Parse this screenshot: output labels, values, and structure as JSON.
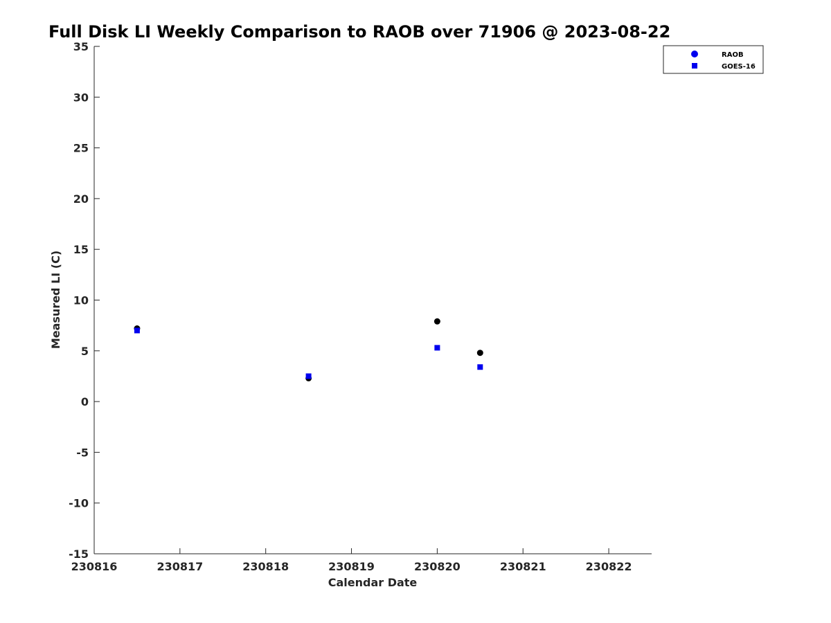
{
  "chart_data": {
    "type": "scatter",
    "title": "Full Disk LI Weekly Comparison to RAOB over 71906 @ 2023-08-22",
    "xlabel": "Calendar Date",
    "ylabel": "Measured LI (C)",
    "xlim": [
      "2023-08-16",
      "2023-08-22 12:00"
    ],
    "ylim": [
      -15,
      35
    ],
    "x_ticks": [
      "2023-08-16",
      "2023-08-17",
      "2023-08-18",
      "2023-08-19",
      "2023-08-20",
      "2023-08-21",
      "2023-08-22"
    ],
    "x_tick_labels": [
      "230816",
      "230817",
      "230818",
      "230819",
      "230820",
      "230821",
      "230822"
    ],
    "y_ticks": [
      35,
      30,
      25,
      20,
      15,
      10,
      5,
      0,
      -5,
      -10,
      -15
    ],
    "y_tick_labels": [
      "35",
      "30",
      "25",
      "20",
      "15",
      "10",
      "5",
      "0",
      "-5",
      "-10",
      "-15"
    ],
    "grid": false,
    "legend_position": "top-right",
    "legend": [
      {
        "label": "RAOB",
        "marker": "circle",
        "color": "#0000ee"
      },
      {
        "label": "GOES-16",
        "marker": "square",
        "color": "#0000ee"
      }
    ],
    "series": [
      {
        "name": "RAOB",
        "marker": "circle",
        "color": "#000000",
        "x": [
          "2023-08-16 12:00",
          "2023-08-18 12:00",
          "2023-08-20 00:00",
          "2023-08-20 12:00"
        ],
        "y": [
          7.2,
          2.3,
          7.9,
          4.8
        ]
      },
      {
        "name": "GOES-16",
        "marker": "square",
        "color": "#0000ee",
        "x": [
          "2023-08-16 12:00",
          "2023-08-18 12:00",
          "2023-08-20 00:00",
          "2023-08-20 12:00"
        ],
        "y": [
          7.0,
          2.5,
          5.3,
          3.4
        ]
      }
    ]
  }
}
